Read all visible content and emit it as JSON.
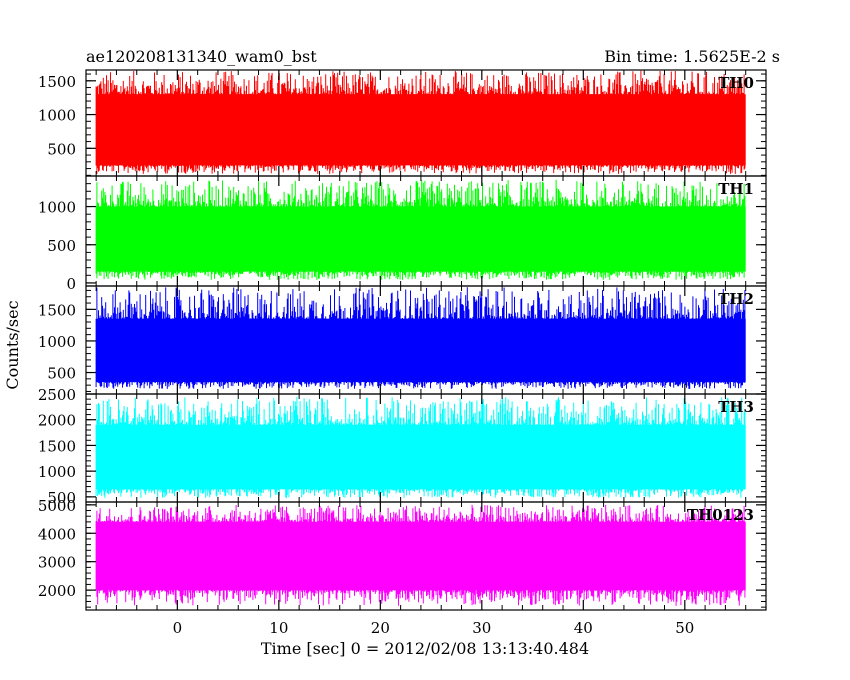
{
  "header": {
    "title": "ae120208131340_wam0_bst",
    "bin_time": "Bin time: 1.5625E-2 s"
  },
  "chart_data": {
    "type": "line",
    "xlabel": "Time [sec] 0 = 2012/02/08 13:13:40.484",
    "ylabel": "Counts/sec",
    "xlim": [
      -9,
      58
    ],
    "x_ticks": [
      0,
      10,
      20,
      30,
      40,
      50
    ],
    "x_tick_labels": [
      "0",
      "10",
      "20",
      "30",
      "40",
      "50"
    ],
    "data_range": [
      -8,
      56
    ],
    "panels": [
      {
        "name": "TH0",
        "color": "#ff0000",
        "ylim": [
          90,
          1660
        ],
        "y_ticks": [
          500,
          1000,
          1500
        ],
        "y_tick_labels": [
          "500",
          "1000",
          "1500"
        ],
        "band_low": 250,
        "band_high": 1300,
        "min": 120,
        "max": 1650
      },
      {
        "name": "TH1",
        "color": "#00ff00",
        "ylim": [
          -40,
          1400
        ],
        "y_ticks": [
          0,
          500,
          1000
        ],
        "y_tick_labels": [
          "0",
          "500",
          "1000"
        ],
        "band_low": 150,
        "band_high": 1000,
        "min": 40,
        "max": 1350
      },
      {
        "name": "TH2",
        "color": "#0000ff",
        "ylim": [
          160,
          1870
        ],
        "y_ticks": [
          500,
          1000,
          1500
        ],
        "y_tick_labels": [
          "500",
          "1000",
          "1500"
        ],
        "band_low": 350,
        "band_high": 1350,
        "min": 240,
        "max": 1850
      },
      {
        "name": "TH3",
        "color": "#00ffff",
        "ylim": [
          400,
          2500
        ],
        "y_ticks": [
          500,
          1000,
          1500,
          2000,
          2500
        ],
        "y_tick_labels": [
          "500",
          "1000",
          "1500",
          "2000",
          "2500"
        ],
        "band_low": 650,
        "band_high": 1900,
        "min": 480,
        "max": 2450
      },
      {
        "name": "TH0123",
        "color": "#ff00ff",
        "ylim": [
          1300,
          5100
        ],
        "y_ticks": [
          2000,
          3000,
          4000,
          5000
        ],
        "y_tick_labels": [
          "2000",
          "3000",
          "4000",
          "5000"
        ],
        "band_low": 2000,
        "band_high": 4400,
        "min": 1450,
        "max": 5000
      }
    ]
  }
}
